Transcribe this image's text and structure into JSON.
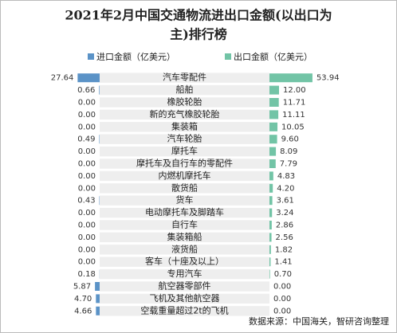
{
  "chart_data": {
    "type": "butterfly-bar",
    "title": "2021年2月中国交通物流进出口金额(以出口为",
    "title_line2": "主)排行榜",
    "source": "数据来源：中国海关，智研咨询整理",
    "categories": [
      "汽车零配件",
      "船舶",
      "橡胶轮胎",
      "新的充气橡胶轮胎",
      "集装箱",
      "汽车轮胎",
      "摩托车",
      "摩托车及自行车的零配件",
      "内燃机摩托车",
      "散货船",
      "货车",
      "电动摩托车及脚踏车",
      "自行车",
      "集装箱船",
      "液货船",
      "客车（十座及以上）",
      "专用汽车",
      "航空器零部件",
      "飞机及其他航空器",
      "空载重量超过2t的飞机"
    ],
    "xlim": [
      0,
      60
    ],
    "series": [
      {
        "name": "进口金额（亿美元）",
        "color": "#5b93c7",
        "side": "left",
        "values": [
          27.64,
          0.66,
          0,
          0,
          0,
          0.49,
          0,
          0,
          0,
          0,
          0.43,
          0,
          0,
          0,
          0,
          0,
          0.18,
          5.87,
          4.7,
          4.66
        ],
        "value_labels": [
          "27.64",
          "0.66",
          "0.00",
          "0.00",
          "0.00",
          "0.49",
          "0.00",
          "0.00",
          "0.00",
          "0.00",
          "0.43",
          "0.00",
          "0.00",
          "0.00",
          "0.00",
          "0.00",
          "0.18",
          "5.87",
          "4.70",
          "4.66"
        ]
      },
      {
        "name": "出口金额（亿美元）",
        "color": "#72c4a6",
        "side": "right",
        "values": [
          53.94,
          12,
          11.71,
          11.11,
          10.05,
          9.6,
          8.09,
          7.79,
          4.83,
          4.2,
          3.61,
          3.24,
          2.86,
          2.56,
          1.82,
          1.41,
          0.7,
          0,
          0,
          0
        ],
        "value_labels": [
          "53.94",
          "12.00",
          "11.71",
          "11.11",
          "10.05",
          "9.60",
          "8.09",
          "7.79",
          "4.83",
          "4.20",
          "3.61",
          "3.24",
          "2.86",
          "2.56",
          "1.82",
          "1.41",
          "0.70",
          "0.00",
          "0.00",
          "0.00"
        ]
      }
    ]
  }
}
